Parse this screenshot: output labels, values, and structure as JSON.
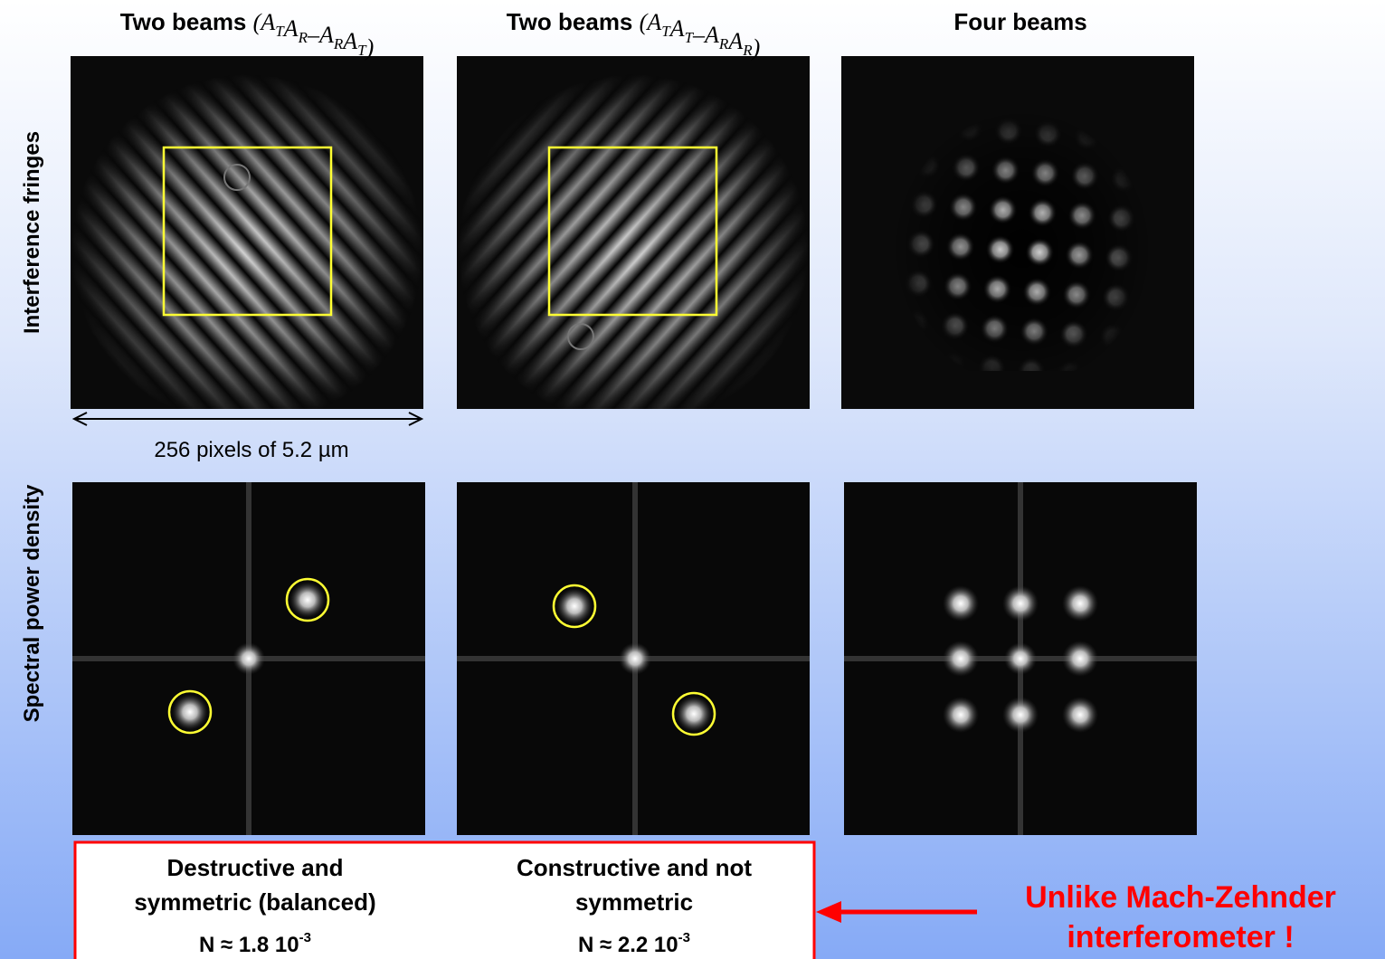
{
  "columns": [
    {
      "title": "Two beams",
      "formula": {
        "open": "(",
        "left": [
          {
            "base": "A",
            "sub": "T"
          },
          {
            "base": "A",
            "sub": "R"
          }
        ],
        "operator": "–",
        "right": [
          {
            "base": "A",
            "sub": "R"
          },
          {
            "base": "A",
            "sub": "T"
          }
        ],
        "close": ")"
      }
    },
    {
      "title": "Two beams",
      "formula": {
        "open": "(",
        "left": [
          {
            "base": "A",
            "sub": "T"
          },
          {
            "base": "A",
            "sub": "T"
          }
        ],
        "operator": "–",
        "right": [
          {
            "base": "A",
            "sub": "R"
          },
          {
            "base": "A",
            "sub": "R"
          }
        ],
        "close": ")"
      }
    },
    {
      "title": "Four beams"
    }
  ],
  "row_labels": [
    "Interference fringes",
    "Spectral power density"
  ],
  "scale_label": "256 pixels of 5.2 µm",
  "results": [
    {
      "description": [
        "Destructive and",
        "symmetric (balanced)"
      ],
      "null_depth": "N ≈ 1.8 10",
      "exponent": "-3"
    },
    {
      "description": [
        "Constructive and not",
        "symmetric"
      ],
      "null_depth": "N ≈ 2.2 10",
      "exponent": "-3"
    }
  ],
  "note": [
    "Unlike Mach-Zehnder",
    "interferometer !"
  ]
}
